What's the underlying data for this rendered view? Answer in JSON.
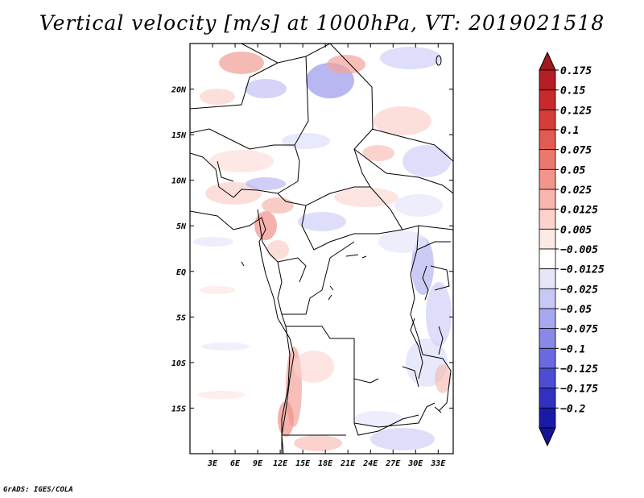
{
  "title": "Vertical velocity [m/s] at 1000hPa, VT: 2019021518",
  "credit": "GrADS: IGES/COLA",
  "map": {
    "lon_range": [
      0,
      35
    ],
    "lat_range": [
      -20,
      25
    ],
    "lon_ticks": [
      {
        "v": 3,
        "label": "3E"
      },
      {
        "v": 6,
        "label": "6E"
      },
      {
        "v": 9,
        "label": "9E"
      },
      {
        "v": 12,
        "label": "12E"
      },
      {
        "v": 15,
        "label": "15E"
      },
      {
        "v": 18,
        "label": "18E"
      },
      {
        "v": 21,
        "label": "21E"
      },
      {
        "v": 24,
        "label": "24E"
      },
      {
        "v": 27,
        "label": "27E"
      },
      {
        "v": 30,
        "label": "30E"
      },
      {
        "v": 33,
        "label": "33E"
      }
    ],
    "lat_ticks": [
      {
        "v": 20,
        "label": "20N"
      },
      {
        "v": 15,
        "label": "15N"
      },
      {
        "v": 10,
        "label": "10N"
      },
      {
        "v": 5,
        "label": "5N"
      },
      {
        "v": 0,
        "label": "EQ"
      },
      {
        "v": -5,
        "label": "5S"
      },
      {
        "v": -10,
        "label": "10S"
      },
      {
        "v": -15,
        "label": "15S"
      }
    ]
  },
  "colorbar": {
    "levels": [
      {
        "label": "0.175",
        "color": "#b41e24"
      },
      {
        "label": "0.15",
        "color": "#c82a2c"
      },
      {
        "label": "0.125",
        "color": "#d63c3a"
      },
      {
        "label": "0.1",
        "color": "#e25a52"
      },
      {
        "label": "0.075",
        "color": "#ea786e"
      },
      {
        "label": "0.05",
        "color": "#f2968c"
      },
      {
        "label": "0.025",
        "color": "#f7b6ae"
      },
      {
        "label": "0.0125",
        "color": "#fbd2cc"
      },
      {
        "label": "0.005",
        "color": "#fde9e6"
      },
      {
        "label": "−0.005",
        "color": "#ffffff"
      },
      {
        "label": "−0.0125",
        "color": "#e6e6fb"
      },
      {
        "label": "−0.025",
        "color": "#c8c8f6"
      },
      {
        "label": "−0.05",
        "color": "#a8a8f0"
      },
      {
        "label": "−0.075",
        "color": "#8888e8"
      },
      {
        "label": "−0.1",
        "color": "#6a6ae0"
      },
      {
        "label": "−0.125",
        "color": "#4c4cd4"
      },
      {
        "label": "−0.175",
        "color": "#3030c2"
      },
      {
        "label": "−0.2",
        "color": "#1a1aa8"
      }
    ],
    "top_color": "#a01a1e",
    "bottom_color": "#14149a"
  }
}
